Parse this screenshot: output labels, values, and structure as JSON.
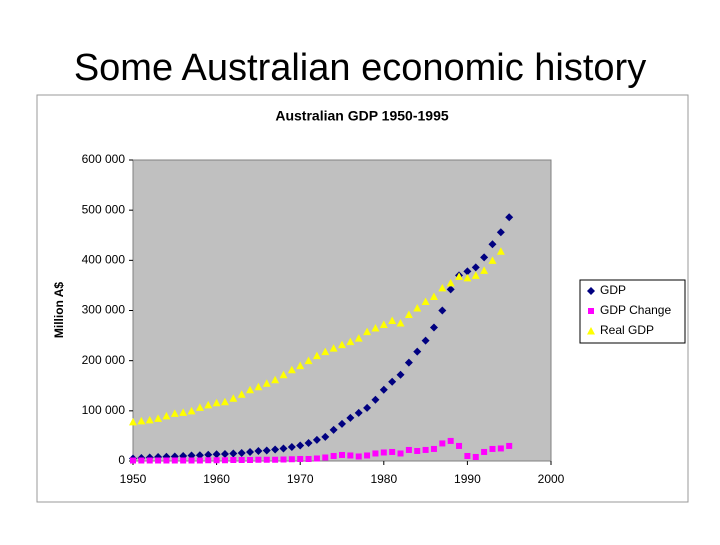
{
  "slide": {
    "title": "Some Australian economic history"
  },
  "chart_data": {
    "type": "scatter",
    "title": "Australian GDP 1950-1995",
    "y_label": "Million A$",
    "x": [
      1950,
      1951,
      1952,
      1953,
      1954,
      1955,
      1956,
      1957,
      1958,
      1959,
      1960,
      1961,
      1962,
      1963,
      1964,
      1965,
      1966,
      1967,
      1968,
      1969,
      1970,
      1971,
      1972,
      1973,
      1974,
      1975,
      1976,
      1977,
      1978,
      1979,
      1980,
      1981,
      1982,
      1983,
      1984,
      1985,
      1986,
      1987,
      1988,
      1989,
      1990,
      1991,
      1992,
      1993,
      1994,
      1995
    ],
    "series": [
      {
        "name": "GDP",
        "color": "#000080",
        "marker": "diamond",
        "values": [
          5000,
          6000,
          7000,
          8000,
          8500,
          9000,
          10000,
          11000,
          11500,
          12500,
          13500,
          14000,
          15000,
          16000,
          18000,
          20000,
          21000,
          23000,
          25000,
          28000,
          31000,
          36000,
          42000,
          48000,
          62000,
          74000,
          86000,
          96000,
          106000,
          122000,
          142000,
          158000,
          172000,
          196000,
          218000,
          240000,
          266000,
          300000,
          342000,
          370000,
          378000,
          386000,
          406000,
          432000,
          456000,
          486000
        ]
      },
      {
        "name": "GDP Change",
        "color": "#ff00ff",
        "marker": "square",
        "values": [
          1000,
          1000,
          1000,
          1000,
          1000,
          1000,
          1000,
          1000,
          1000,
          1500,
          1500,
          1500,
          2000,
          2000,
          2000,
          2500,
          2500,
          2500,
          3000,
          3500,
          4000,
          4000,
          5000,
          7000,
          10000,
          12000,
          11000,
          9000,
          11000,
          15000,
          17000,
          18000,
          15000,
          22000,
          20000,
          22000,
          24000,
          35000,
          40000,
          30000,
          10000,
          8000,
          18000,
          24000,
          25000,
          30000
        ]
      },
      {
        "name": "Real GDP",
        "color": "#ffff00",
        "marker": "triangle",
        "values": [
          78000,
          80000,
          82000,
          85000,
          90000,
          95000,
          97000,
          100000,
          107000,
          112000,
          116000,
          118000,
          125000,
          133000,
          142000,
          148000,
          155000,
          162000,
          172000,
          182000,
          190000,
          200000,
          210000,
          218000,
          225000,
          232000,
          238000,
          245000,
          258000,
          265000,
          272000,
          280000,
          275000,
          292000,
          305000,
          318000,
          328000,
          345000,
          355000,
          368000,
          365000,
          370000,
          380000,
          400000,
          418000,
          null
        ]
      }
    ],
    "xlim": [
      1950,
      2000
    ],
    "xticks": [
      1950,
      1960,
      1970,
      1980,
      1990,
      2000
    ],
    "ylim": [
      0,
      600000
    ],
    "yticks": [
      0,
      {
        "value": 100000,
        "label": "100 000"
      },
      {
        "value": 200000,
        "label": "200 000"
      },
      {
        "value": 300000,
        "label": "300 000"
      },
      {
        "value": 400000,
        "label": "400 000"
      },
      {
        "value": 500000,
        "label": "500 000"
      },
      {
        "value": 600000,
        "label": "600 000"
      }
    ],
    "legend": "right",
    "plot_background": "#c0c0c0"
  }
}
